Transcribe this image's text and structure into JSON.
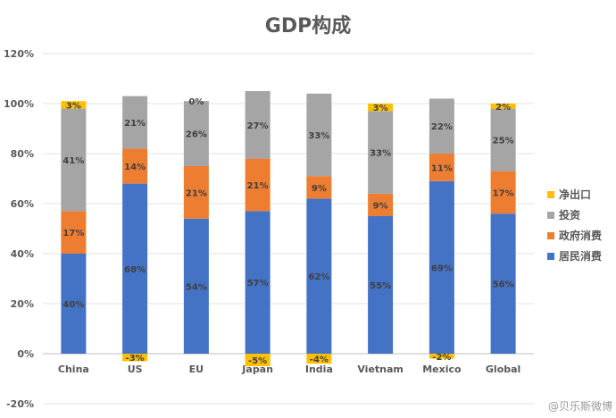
{
  "chart_data": {
    "type": "bar",
    "stacked": true,
    "title": "GDP构成",
    "xlabel": "",
    "ylabel": "",
    "ylim": [
      -20,
      120
    ],
    "yticks": [
      -20,
      0,
      20,
      40,
      60,
      80,
      100,
      120
    ],
    "ytick_labels": [
      "-20%",
      "0%",
      "20%",
      "40%",
      "60%",
      "80%",
      "100%",
      "120%"
    ],
    "grid": true,
    "legend_position": "right",
    "categories": [
      "China",
      "US",
      "EU",
      "Japan",
      "India",
      "Vietnam",
      "Mexico",
      "Global"
    ],
    "series": [
      {
        "name": "居民消费",
        "color": "#4472C4",
        "values": [
          40,
          68,
          54,
          57,
          62,
          55,
          69,
          56
        ],
        "labels": [
          "40%",
          "68%",
          "54%",
          "57%",
          "62%",
          "55%",
          "69%",
          "56%"
        ]
      },
      {
        "name": "政府消费",
        "color": "#ED7D31",
        "values": [
          17,
          14,
          21,
          21,
          9,
          9,
          11,
          17
        ],
        "labels": [
          "17%",
          "14%",
          "21%",
          "21%",
          "9%",
          "9%",
          "11%",
          "17%"
        ]
      },
      {
        "name": "投资",
        "color": "#A5A5A5",
        "values": [
          41,
          21,
          26,
          27,
          33,
          33,
          22,
          25
        ],
        "labels": [
          "41%",
          "21%",
          "26%",
          "27%",
          "33%",
          "33%",
          "22%",
          "25%"
        ]
      },
      {
        "name": "净出口",
        "color": "#FFC000",
        "values": [
          3,
          -3,
          0,
          -5,
          -4,
          3,
          -2,
          2
        ],
        "labels": [
          "3%",
          "-3%",
          "0%",
          "-5%",
          "-4%",
          "3%",
          "-2%",
          "2%"
        ]
      }
    ],
    "legend_order": [
      "净出口",
      "投资",
      "政府消费",
      "居民消费"
    ],
    "watermark": "@贝乐斯微博"
  }
}
